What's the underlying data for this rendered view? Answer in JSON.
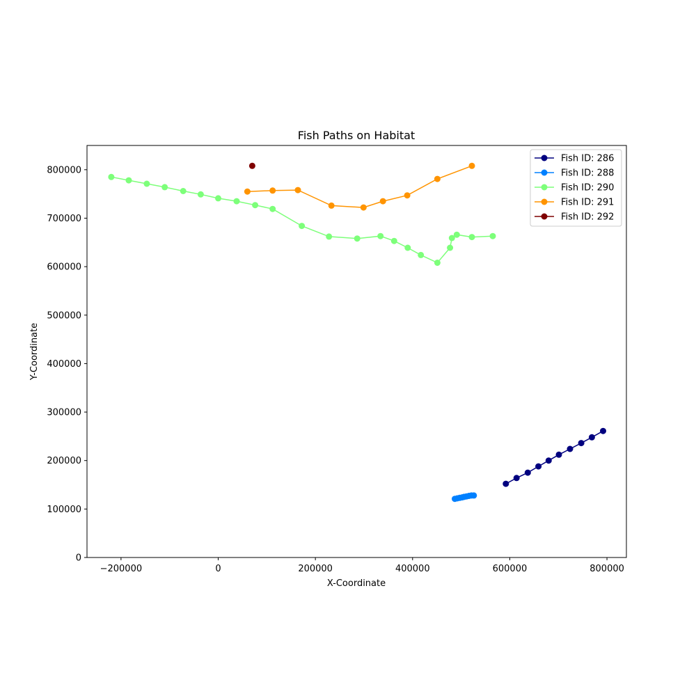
{
  "chart_data": {
    "type": "line",
    "title": "Fish Paths on Habitat",
    "xlabel": "X-Coordinate",
    "ylabel": "Y-Coordinate",
    "xlim": [
      -270000,
      840000
    ],
    "ylim": [
      0,
      850000
    ],
    "xticks": [
      -200000,
      0,
      200000,
      400000,
      600000,
      800000
    ],
    "xtick_labels": [
      "−200000",
      "0",
      "200000",
      "400000",
      "600000",
      "800000"
    ],
    "yticks": [
      0,
      100000,
      200000,
      300000,
      400000,
      500000,
      600000,
      700000,
      800000
    ],
    "ytick_labels": [
      "0",
      "100000",
      "200000",
      "300000",
      "400000",
      "500000",
      "600000",
      "700000",
      "800000"
    ],
    "grid": false,
    "legend_position": "top-right",
    "series": [
      {
        "name": "Fish ID: 286",
        "color": "#00007f",
        "x": [
          592000,
          614000,
          637000,
          659000,
          680000,
          701000,
          724000,
          747000,
          769000,
          792000
        ],
        "y": [
          152000,
          164000,
          175000,
          188000,
          200000,
          212000,
          224000,
          236000,
          248000,
          261000
        ]
      },
      {
        "name": "Fish ID: 288",
        "color": "#0080ff",
        "x": [
          487000,
          492000,
          497000,
          502000,
          506000,
          511000,
          516000,
          521000,
          526000
        ],
        "y": [
          121000,
          122000,
          123000,
          124000,
          125000,
          126000,
          127000,
          128000,
          128000
        ]
      },
      {
        "name": "Fish ID: 290",
        "color": "#7dff7a",
        "x": [
          -220000,
          -184000,
          -147000,
          -110000,
          -72000,
          -36000,
          0,
          38000,
          76000,
          112000,
          172000,
          228000,
          286000,
          334000,
          362000,
          390000,
          417000,
          451000,
          477000,
          481000,
          491000,
          522000,
          565000
        ],
        "y": [
          785000,
          778000,
          771000,
          764000,
          756000,
          749000,
          741000,
          735000,
          727000,
          719000,
          684000,
          662000,
          658000,
          663000,
          653000,
          639000,
          624000,
          608000,
          639000,
          659000,
          666000,
          661000,
          663000
        ]
      },
      {
        "name": "Fish ID: 291",
        "color": "#ff9400",
        "x": [
          60000,
          112000,
          164000,
          233000,
          299000,
          339000,
          389000,
          451000,
          522000
        ],
        "y": [
          755000,
          757000,
          758000,
          726000,
          722000,
          735000,
          747000,
          781000,
          808000
        ]
      },
      {
        "name": "Fish ID: 292",
        "color": "#7f0000",
        "x": [
          70000
        ],
        "y": [
          808000
        ]
      }
    ]
  }
}
